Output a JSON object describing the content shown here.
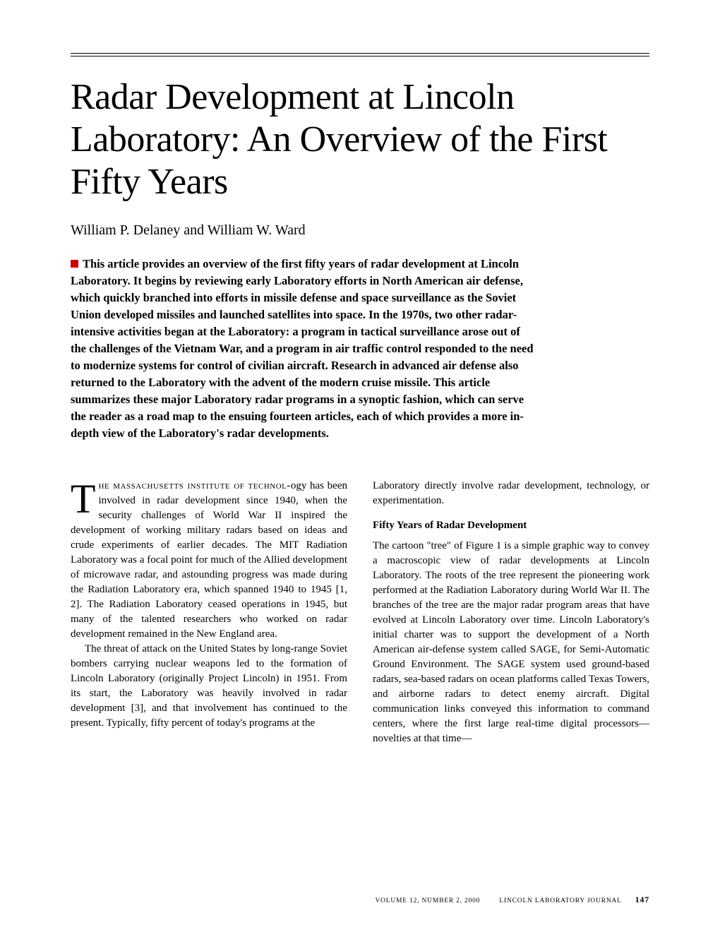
{
  "title": "Radar Development at Lincoln Laboratory: An Overview of the First Fifty Years",
  "authors": "William P. Delaney and William W. Ward",
  "abstract": "This article provides an overview of the first fifty years of radar development at Lincoln Laboratory. It begins by reviewing early Laboratory efforts in North American air defense, which quickly branched into efforts in missile defense and space surveillance as the Soviet Union developed missiles and launched satellites into space. In the 1970s, two other radar-intensive activities began at the Laboratory: a program in tactical surveillance arose out of the challenges of the Vietnam War, and a program in air traffic control responded to the need to modernize systems for control of civilian aircraft. Research in advanced air defense also returned to the Laboratory with the advent of the modern cruise missile. This article summarizes these major Laboratory radar programs in a synoptic fashion, which can serve the reader as a road map to the ensuing fourteen articles, each of which provides a more in-depth view of the Laboratory's radar developments.",
  "body": {
    "col1_dropcap": "T",
    "col1_leadcaps": "he massachusetts institute of technol-",
    "col1_p1_rest": "ogy has been involved in radar development since 1940, when the security challenges of World War II inspired the development of working military radars based on ideas and crude experiments of earlier decades. The MIT Radiation Laboratory was a focal point for much of the Allied development of microwave radar, and astounding progress was made during the Radiation Laboratory era, which spanned 1940 to 1945 [1, 2]. The Radiation Laboratory ceased operations in 1945, but many of the talented researchers who worked on radar development remained in the New England area.",
    "col1_p2": "The threat of attack on the United States by long-range Soviet bombers carrying nuclear weapons led to the formation of Lincoln Laboratory (originally Project Lincoln) in 1951. From its start, the Laboratory was heavily involved in radar development [3], and that involvement has continued to the present. Typically, fifty percent of today's programs at the",
    "col2_p1": "Laboratory directly involve radar development, technology, or experimentation.",
    "section_heading": "Fifty Years of Radar Development",
    "col2_p2": "The cartoon \"tree\" of Figure 1 is a simple graphic way to convey a macroscopic view of radar developments at Lincoln Laboratory. The roots of the tree represent the pioneering work performed at the Radiation Laboratory during World War II. The branches of the tree are the major radar program areas that have evolved at Lincoln Laboratory over time. Lincoln Laboratory's initial charter was to support the development of a North American air-defense system called SAGE, for Semi-Automatic Ground Environment. The SAGE system used ground-based radars, sea-based radars on ocean platforms called Texas Towers, and airborne radars to detect enemy aircraft. Digital communication links conveyed this information to command centers, where the first large real-time digital processors—novelties at that time—"
  },
  "footer": {
    "volume": "VOLUME 12, NUMBER 2, 2000",
    "journal": "LINCOLN LABORATORY JOURNAL",
    "page": "147"
  },
  "colors": {
    "marker": "#cc0000",
    "text": "#000000",
    "background": "#ffffff"
  }
}
